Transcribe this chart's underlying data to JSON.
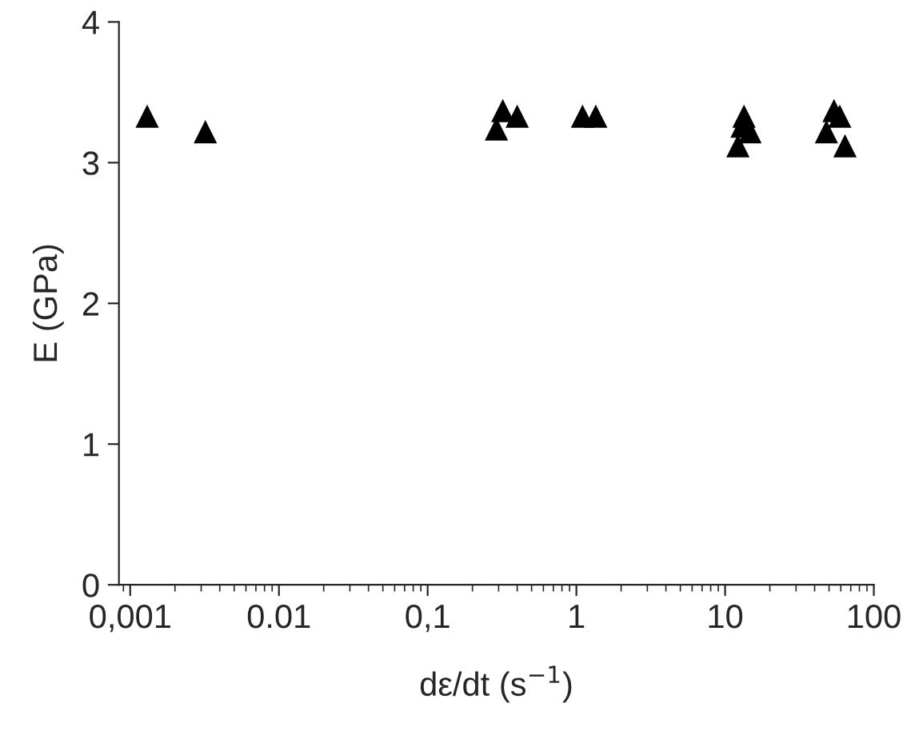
{
  "chart_data": {
    "type": "scatter",
    "xlabel": "dε/dt (s$^{−1}$)",
    "ylabel": "E (GPa)",
    "log": "x",
    "marker": "triangle",
    "grid": false,
    "xlim": [
      0.00084,
      100
    ],
    "ylim": [
      0,
      4
    ],
    "xticks": [
      {
        "value": 0.001,
        "label": "0,001"
      },
      {
        "value": 0.01,
        "label": "0.01"
      },
      {
        "value": 0.1,
        "label": "0,1"
      },
      1,
      10,
      100
    ],
    "yticks": [
      0,
      1,
      2,
      3,
      4
    ],
    "series": [
      {
        "color": "#000000",
        "x": [
          0.0013,
          0.0032,
          0.32,
          0.4,
          0.29,
          1.1,
          1.35,
          13.4,
          14.7,
          12.2,
          13,
          54,
          48,
          64,
          59
        ],
        "values": [
          3.33,
          3.22,
          3.37,
          3.33,
          3.24,
          3.33,
          3.33,
          3.33,
          3.22,
          3.12,
          3.26,
          3.37,
          3.22,
          3.12,
          3.33
        ]
      }
    ]
  }
}
